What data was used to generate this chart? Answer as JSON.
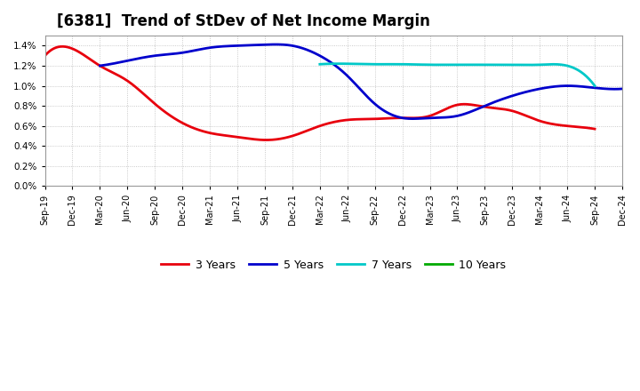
{
  "title": "[6381]  Trend of StDev of Net Income Margin",
  "x_labels": [
    "Sep-19",
    "Dec-19",
    "Mar-20",
    "Jun-20",
    "Sep-20",
    "Dec-20",
    "Mar-21",
    "Jun-21",
    "Sep-21",
    "Dec-21",
    "Mar-22",
    "Jun-22",
    "Sep-22",
    "Dec-22",
    "Mar-23",
    "Jun-23",
    "Sep-23",
    "Dec-23",
    "Mar-24",
    "Jun-24",
    "Sep-24",
    "Dec-24"
  ],
  "y_ticks": [
    0.0,
    0.002,
    0.004,
    0.006,
    0.008,
    0.01,
    0.012,
    0.014
  ],
  "y_max": 0.015,
  "series_3y": {
    "label": "3 Years",
    "color": "#e8000d",
    "x_idx": [
      0,
      1,
      2,
      3,
      4,
      5,
      6,
      7,
      8,
      9,
      10,
      11,
      12,
      13,
      14,
      15,
      16,
      17,
      18,
      19,
      20
    ],
    "y": [
      0.013,
      0.0137,
      0.012,
      0.0105,
      0.0082,
      0.0063,
      0.0053,
      0.0049,
      0.0046,
      0.005,
      0.006,
      0.0066,
      0.0067,
      0.0068,
      0.007,
      0.0081,
      0.0079,
      0.0075,
      0.0065,
      0.006,
      0.0057
    ]
  },
  "series_5y": {
    "label": "5 Years",
    "color": "#0000cc",
    "x_idx": [
      2,
      3,
      4,
      5,
      6,
      7,
      8,
      9,
      10,
      11,
      12,
      13,
      14,
      15,
      16,
      17,
      18,
      19,
      20,
      21
    ],
    "y": [
      0.012,
      0.0125,
      0.013,
      0.0133,
      0.0138,
      0.014,
      0.0141,
      0.014,
      0.013,
      0.011,
      0.0082,
      0.0068,
      0.0068,
      0.007,
      0.008,
      0.009,
      0.0097,
      0.01,
      0.0098,
      0.0097
    ]
  },
  "series_7y": {
    "label": "7 Years",
    "color": "#00c8c8",
    "x_idx": [
      10,
      11,
      12,
      13,
      14,
      15,
      16,
      17,
      18,
      19,
      20
    ],
    "y": [
      0.01215,
      0.0122,
      0.01215,
      0.01215,
      0.0121,
      0.0121,
      0.0121,
      0.0121,
      0.0121,
      0.012,
      0.01
    ]
  },
  "series_10y": {
    "label": "10 Years",
    "color": "#00aa00",
    "x_idx": [],
    "y": []
  },
  "background_color": "#ffffff",
  "grid_color": "#aaaaaa",
  "title_fontsize": 12,
  "line_width": 2.0
}
